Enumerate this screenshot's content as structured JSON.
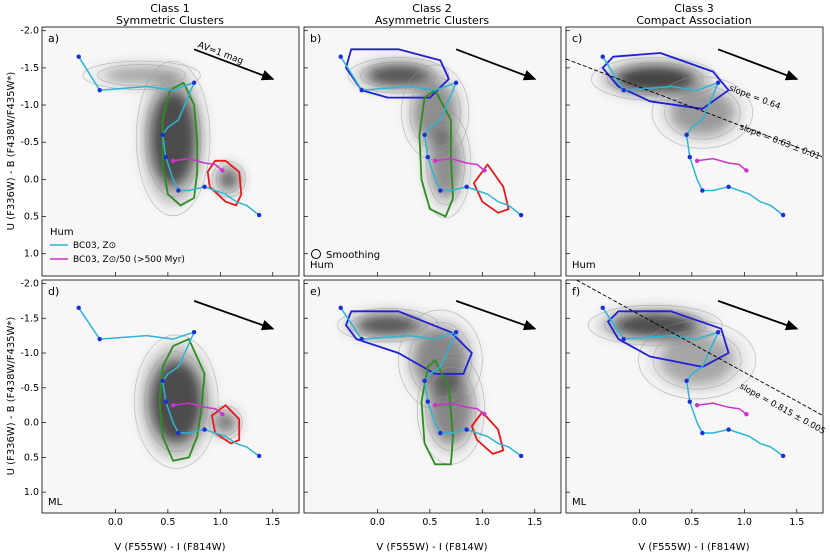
{
  "chart_data": {
    "type": "scatter",
    "xlabel": "V (F555W) - I (F814W)",
    "ylabel": "U (F336W) - B (F438W/F435W*)",
    "xlim": [
      -0.7,
      1.75
    ],
    "ylim": [
      1.3,
      -2.05
    ],
    "xticks": [
      "0.0",
      "0.5",
      "1.0",
      "1.5"
    ],
    "yticks": [
      "-2.0",
      "-1.5",
      "-1.0",
      "-0.5",
      "0.0",
      "0.5",
      "1.0"
    ],
    "columns": [
      {
        "class": "Class 1",
        "subtitle": "Symmetric Clusters"
      },
      {
        "class": "Class 2",
        "subtitle": "Asymmetric Clusters"
      },
      {
        "class": "Class 3",
        "subtitle": "Compact Association"
      }
    ],
    "panels": [
      {
        "id": "a",
        "label": "a)",
        "row": 0,
        "col": 0,
        "sample": "",
        "blobs": [
          [
            0.55,
            -0.55,
            0.22,
            0.65,
            0.85
          ],
          [
            0.25,
            -1.4,
            0.35,
            0.12,
            0.35
          ],
          [
            1.08,
            0.0,
            0.1,
            0.15,
            0.7
          ]
        ],
        "contours": [
          {
            "color": "#2e8b22",
            "pts": [
              [
                0.65,
                -1.3
              ],
              [
                0.75,
                -1.0
              ],
              [
                0.78,
                -0.5
              ],
              [
                0.78,
                -0.1
              ],
              [
                0.75,
                0.25
              ],
              [
                0.62,
                0.35
              ],
              [
                0.5,
                0.2
              ],
              [
                0.45,
                -0.2
              ],
              [
                0.45,
                -0.8
              ],
              [
                0.52,
                -1.2
              ]
            ]
          },
          {
            "color": "#e41a1c",
            "pts": [
              [
                1.05,
                -0.25
              ],
              [
                1.18,
                -0.1
              ],
              [
                1.2,
                0.2
              ],
              [
                1.15,
                0.35
              ],
              [
                1.05,
                0.3
              ],
              [
                0.9,
                0.1
              ],
              [
                0.88,
                -0.1
              ],
              [
                0.95,
                -0.25
              ]
            ]
          }
        ]
      },
      {
        "id": "b",
        "label": "b)",
        "row": 0,
        "col": 1,
        "sample": "Hum",
        "blobs": [
          [
            0.2,
            -1.4,
            0.3,
            0.15,
            0.8
          ],
          [
            0.55,
            -0.9,
            0.2,
            0.4,
            0.45
          ],
          [
            0.65,
            -0.2,
            0.15,
            0.45,
            0.45
          ]
        ],
        "contours": [
          {
            "color": "#1f1fd6",
            "pts": [
              [
                -0.25,
                -1.75
              ],
              [
                0.2,
                -1.75
              ],
              [
                0.6,
                -1.6
              ],
              [
                0.68,
                -1.35
              ],
              [
                0.5,
                -1.1
              ],
              [
                0.1,
                -1.1
              ],
              [
                -0.15,
                -1.2
              ],
              [
                -0.3,
                -1.5
              ]
            ]
          },
          {
            "color": "#2e8b22",
            "pts": [
              [
                0.55,
                -1.2
              ],
              [
                0.7,
                -0.8
              ],
              [
                0.7,
                -0.3
              ],
              [
                0.72,
                0.25
              ],
              [
                0.65,
                0.5
              ],
              [
                0.5,
                0.4
              ],
              [
                0.42,
                0.0
              ],
              [
                0.4,
                -0.6
              ],
              [
                0.45,
                -1.1
              ]
            ]
          },
          {
            "color": "#e41a1c",
            "pts": [
              [
                1.05,
                -0.2
              ],
              [
                1.2,
                0.1
              ],
              [
                1.25,
                0.4
              ],
              [
                1.15,
                0.45
              ],
              [
                1.0,
                0.3
              ],
              [
                0.92,
                0.05
              ]
            ]
          }
        ]
      },
      {
        "id": "c",
        "label": "c)",
        "row": 0,
        "col": 2,
        "sample": "Hum",
        "blobs": [
          [
            0.15,
            -1.35,
            0.38,
            0.18,
            0.9
          ],
          [
            0.6,
            -0.9,
            0.3,
            0.3,
            0.4
          ]
        ],
        "contours": [
          {
            "color": "#1f1fd6",
            "pts": [
              [
                -0.25,
                -1.65
              ],
              [
                0.2,
                -1.7
              ],
              [
                0.7,
                -1.45
              ],
              [
                0.85,
                -1.2
              ],
              [
                0.6,
                -0.95
              ],
              [
                0.1,
                -1.05
              ],
              [
                -0.2,
                -1.25
              ],
              [
                -0.35,
                -1.5
              ]
            ]
          }
        ],
        "line": {
          "p1": [
            -0.7,
            -1.62
          ],
          "p2": [
            1.75,
            -0.3
          ]
        },
        "slope_fixed": "slope = 0.64",
        "slope_fit": "slope = 0.63 ± 0.01"
      },
      {
        "id": "d",
        "label": "d)",
        "row": 1,
        "col": 0,
        "sample": "ML",
        "blobs": [
          [
            0.58,
            -0.3,
            0.25,
            0.6,
            0.85
          ],
          [
            1.05,
            0.0,
            0.1,
            0.15,
            0.6
          ]
        ],
        "contours": [
          {
            "color": "#2e8b22",
            "pts": [
              [
                0.7,
                -1.2
              ],
              [
                0.85,
                -0.7
              ],
              [
                0.82,
                -0.2
              ],
              [
                0.78,
                0.2
              ],
              [
                0.7,
                0.5
              ],
              [
                0.55,
                0.55
              ],
              [
                0.45,
                0.2
              ],
              [
                0.42,
                -0.3
              ],
              [
                0.45,
                -0.8
              ],
              [
                0.55,
                -1.1
              ]
            ]
          },
          {
            "color": "#e41a1c",
            "pts": [
              [
                1.05,
                -0.25
              ],
              [
                1.18,
                -0.05
              ],
              [
                1.18,
                0.25
              ],
              [
                1.1,
                0.3
              ],
              [
                0.95,
                0.15
              ],
              [
                0.92,
                -0.1
              ]
            ]
          }
        ]
      },
      {
        "id": "e",
        "label": "e)",
        "row": 1,
        "col": 1,
        "sample": "",
        "blobs": [
          [
            0.1,
            -1.4,
            0.3,
            0.15,
            0.8
          ],
          [
            0.6,
            -0.9,
            0.25,
            0.45,
            0.5
          ],
          [
            0.7,
            -0.2,
            0.2,
            0.5,
            0.5
          ]
        ],
        "contours": [
          {
            "color": "#1f1fd6",
            "pts": [
              [
                -0.25,
                -1.6
              ],
              [
                0.2,
                -1.6
              ],
              [
                0.7,
                -1.3
              ],
              [
                0.9,
                -1.0
              ],
              [
                0.82,
                -0.7
              ],
              [
                0.55,
                -0.7
              ],
              [
                0.2,
                -1.0
              ],
              [
                -0.2,
                -1.2
              ],
              [
                -0.3,
                -1.4
              ]
            ]
          },
          {
            "color": "#2e8b22",
            "pts": [
              [
                0.55,
                -0.9
              ],
              [
                0.68,
                -0.5
              ],
              [
                0.72,
                0.2
              ],
              [
                0.7,
                0.6
              ],
              [
                0.55,
                0.6
              ],
              [
                0.45,
                0.3
              ],
              [
                0.42,
                -0.3
              ],
              [
                0.48,
                -0.8
              ]
            ]
          },
          {
            "color": "#e41a1c",
            "pts": [
              [
                1.0,
                -0.15
              ],
              [
                1.15,
                0.1
              ],
              [
                1.2,
                0.4
              ],
              [
                1.1,
                0.45
              ],
              [
                0.95,
                0.25
              ],
              [
                0.9,
                0.05
              ]
            ]
          }
        ]
      },
      {
        "id": "f",
        "label": "f)",
        "row": 1,
        "col": 2,
        "sample": "ML",
        "blobs": [
          [
            0.15,
            -1.4,
            0.4,
            0.18,
            0.85
          ],
          [
            0.55,
            -0.9,
            0.35,
            0.35,
            0.35
          ]
        ],
        "contours": [
          {
            "color": "#1f1fd6",
            "pts": [
              [
                -0.2,
                -1.6
              ],
              [
                0.3,
                -1.6
              ],
              [
                0.78,
                -1.35
              ],
              [
                0.85,
                -1.0
              ],
              [
                0.6,
                -0.8
              ],
              [
                0.1,
                -0.95
              ],
              [
                -0.2,
                -1.2
              ],
              [
                -0.3,
                -1.45
              ]
            ]
          }
        ],
        "line": {
          "p1": [
            -0.6,
            -2.05
          ],
          "p2": [
            1.75,
            -0.1
          ]
        },
        "slope_fit": "slope = 0.815 ± 0.005"
      }
    ],
    "tracks": [
      {
        "name": "BC03, Z⊙",
        "color": "#2cb5d4",
        "points": [
          [
            -0.35,
            -1.65
          ],
          [
            -0.15,
            -1.2
          ],
          [
            0.3,
            -1.25
          ],
          [
            0.55,
            -1.2
          ],
          [
            0.65,
            -1.25
          ],
          [
            0.75,
            -1.3
          ],
          [
            0.6,
            -0.8
          ],
          [
            0.5,
            -0.7
          ],
          [
            0.45,
            -0.6
          ],
          [
            0.48,
            -0.3
          ],
          [
            0.55,
            0.0
          ],
          [
            0.6,
            0.15
          ],
          [
            0.7,
            0.15
          ],
          [
            0.85,
            0.1
          ],
          [
            0.95,
            0.15
          ],
          [
            1.05,
            0.2
          ],
          [
            1.15,
            0.3
          ],
          [
            1.25,
            0.35
          ],
          [
            1.37,
            0.48
          ]
        ],
        "markers": [
          [
            -0.35,
            -1.65
          ],
          [
            -0.15,
            -1.2
          ],
          [
            0.75,
            -1.3
          ],
          [
            0.45,
            -0.6
          ],
          [
            0.48,
            -0.3
          ],
          [
            0.6,
            0.15
          ],
          [
            0.85,
            0.1
          ],
          [
            1.37,
            0.48
          ]
        ]
      },
      {
        "name": "BC03, Z⊙/50 (>500 Myr)",
        "color": "#cc33cc",
        "points": [
          [
            0.55,
            -0.25
          ],
          [
            0.7,
            -0.28
          ],
          [
            0.85,
            -0.22
          ],
          [
            0.95,
            -0.2
          ],
          [
            1.02,
            -0.12
          ]
        ],
        "markers": [
          [
            0.55,
            -0.25
          ],
          [
            1.02,
            -0.12
          ]
        ]
      }
    ],
    "legend": {
      "sample": "Hum",
      "entries": [
        "BC03, Z⊙",
        "BC03, Z⊙/50 (>500 Myr)"
      ],
      "smoothing_label": "Smoothing"
    },
    "extinction": {
      "label": "AV=1 mag",
      "from": [
        0.75,
        -1.75
      ],
      "to": [
        1.5,
        -1.35
      ]
    }
  }
}
